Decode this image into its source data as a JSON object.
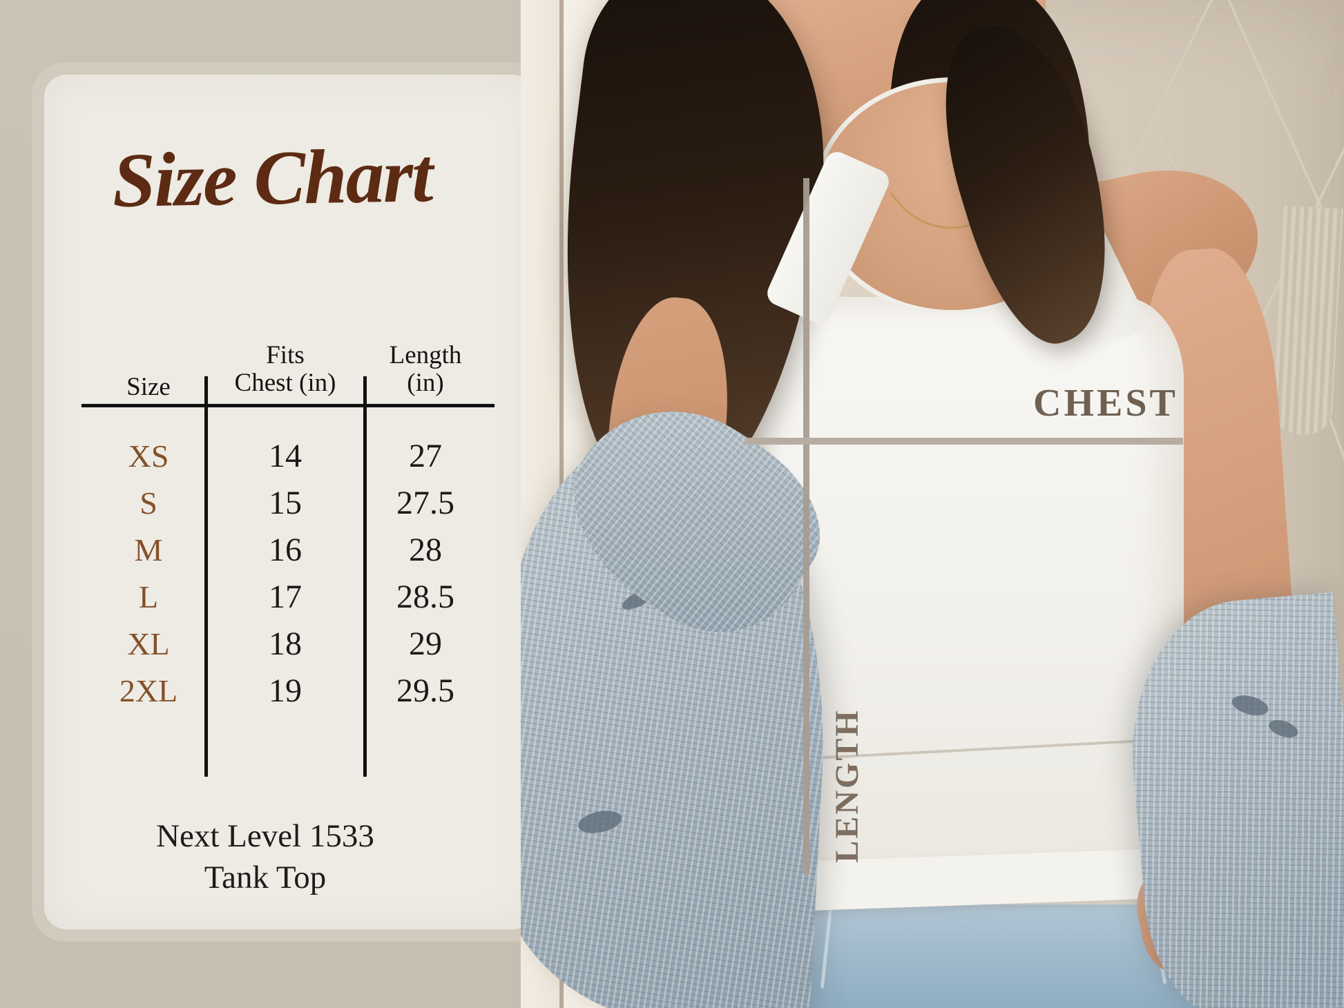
{
  "card": {
    "title": "Size Chart",
    "table": {
      "header_size": "Size",
      "header_chest_line1": "Fits",
      "header_chest_line2": "Chest (in)",
      "header_length_line1": "Length",
      "header_length_line2": "(in)"
    },
    "footer_line1": "Next Level 1533",
    "footer_line2": "Tank Top"
  },
  "photo_overlay": {
    "chest_label": "CHEST",
    "length_label": "LENGTH"
  },
  "chart_data": {
    "type": "table",
    "title": "Size Chart",
    "columns": [
      "Size",
      "Fits Chest (in)",
      "Length (in)"
    ],
    "rows": [
      {
        "size": "XS",
        "chest_in": 14,
        "length_in": 27
      },
      {
        "size": "S",
        "chest_in": 15,
        "length_in": 27.5
      },
      {
        "size": "M",
        "chest_in": 16,
        "length_in": 28
      },
      {
        "size": "L",
        "chest_in": 17,
        "length_in": 28.5
      },
      {
        "size": "XL",
        "chest_in": 18,
        "length_in": 29
      },
      {
        "size": "2XL",
        "chest_in": 19,
        "length_in": 29.5
      }
    ],
    "caption": "Next Level 1533 Tank Top"
  },
  "colors": {
    "background_beige": "#c8c0b2",
    "card_cream": "#eeebe4",
    "card_border_beige": "#d2cabc",
    "title_brown": "#5d2b13",
    "size_label_brown": "#82512a",
    "table_text": "#1b1a18",
    "measure_line_taupe": "#b0a599",
    "chest_label_color": "#6f6052",
    "length_label_color": "#7d6e5f"
  }
}
